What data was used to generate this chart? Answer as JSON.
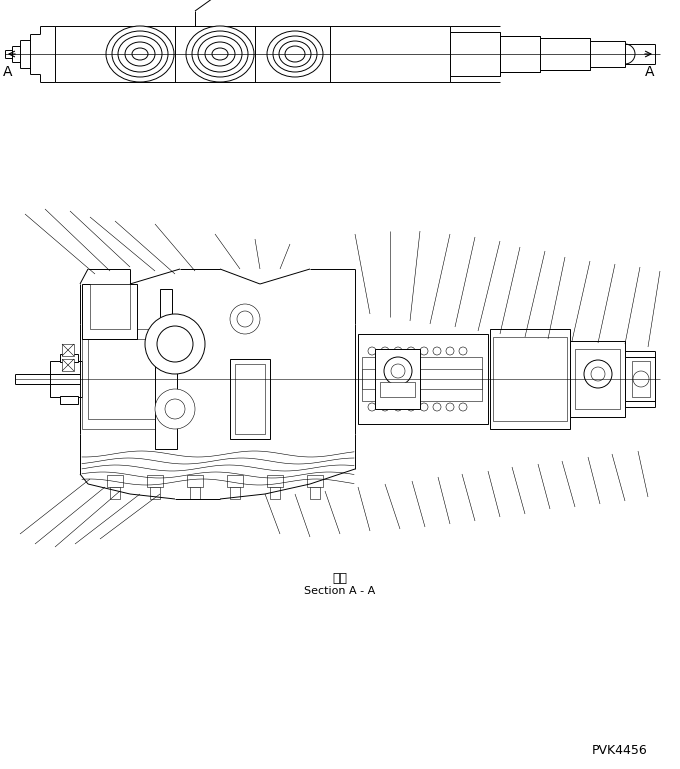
{
  "bg_color": "#ffffff",
  "line_color": "#000000",
  "lw": 0.7,
  "lw_thin": 0.4,
  "section_label_japanese": "断面",
  "section_label_english": "Section A - A",
  "drawing_id": "PVK4456"
}
